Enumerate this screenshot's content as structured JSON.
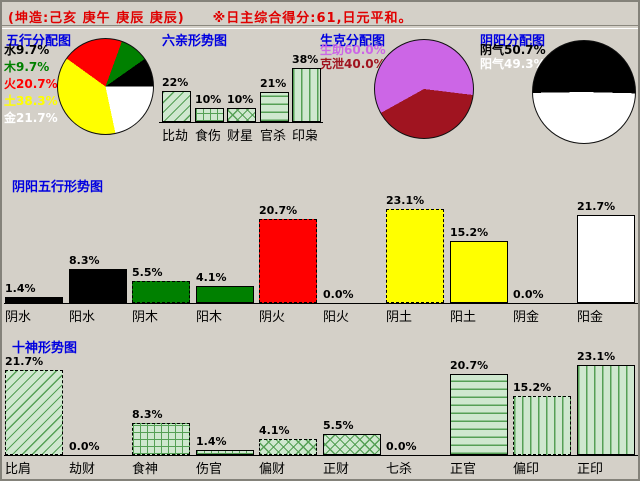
{
  "header": {
    "text": "(坤造:己亥  庚午  庚辰  庚辰)　　※日主综合得分:61,日元平和。"
  },
  "five_elements": {
    "title": "五行分配图",
    "legend": [
      {
        "text": "水9.7%",
        "color": "#000000"
      },
      {
        "text": "木9.7%",
        "color": "#008000"
      },
      {
        "text": "火20.7%",
        "color": "#ff0000"
      },
      {
        "text": "土38.3%",
        "color": "#ffff00"
      },
      {
        "text": "金21.7%",
        "color": "#ffffff"
      }
    ],
    "pie": {
      "start_deg": 20,
      "slices": [
        {
          "label": "木",
          "pct": 9.7,
          "color": "#008000"
        },
        {
          "label": "水",
          "pct": 9.7,
          "color": "#000000"
        },
        {
          "label": "金",
          "pct": 21.7,
          "color": "#ffffff"
        },
        {
          "label": "土",
          "pct": 38.3,
          "color": "#ffff00"
        },
        {
          "label": "火",
          "pct": 20.7,
          "color": "#ff0000"
        }
      ]
    }
  },
  "six_relations": {
    "title": "六亲形势图",
    "bars": [
      {
        "label": "比劫",
        "value": 22,
        "text": "22%",
        "pattern": "diag",
        "dashed": false
      },
      {
        "label": "食伤",
        "value": 10,
        "text": "10%",
        "pattern": "grid",
        "dashed": false
      },
      {
        "label": "财星",
        "value": 10,
        "text": "10%",
        "pattern": "diamond",
        "dashed": false
      },
      {
        "label": "官杀",
        "value": 21,
        "text": "21%",
        "pattern": "horiz",
        "dashed": false
      },
      {
        "label": "印枭",
        "value": 38,
        "text": "38%",
        "pattern": "vert",
        "dashed": false
      }
    ]
  },
  "sheng_ke": {
    "title": "生克分配图",
    "legend": [
      {
        "text": "生助60.0%",
        "color": "#cc66e6"
      },
      {
        "text": "克泄40.0%",
        "color": "#a01420"
      }
    ],
    "pie": {
      "start_deg": 97,
      "slices": [
        {
          "label": "克泄",
          "pct": 40.0,
          "color": "#a01420"
        },
        {
          "label": "生助",
          "pct": 60.0,
          "color": "#cc66e6"
        }
      ]
    }
  },
  "yin_yang": {
    "title": "阴阳分配图",
    "legend": [
      {
        "text": "阴气50.7%",
        "color": "#000000"
      },
      {
        "text": "阳气49.3%",
        "color": "#ffffff"
      }
    ],
    "pie": {
      "start_deg": 269,
      "slices": [
        {
          "label": "阴气",
          "pct": 50.7,
          "color": "#000000"
        },
        {
          "label": "阳气",
          "pct": 49.3,
          "color": "#ffffff"
        }
      ]
    }
  },
  "yinyang_five_elements": {
    "title": "阴阳五行形势图",
    "bars": [
      {
        "label": "阴水",
        "value": 1.4,
        "text": "1.4%",
        "color": "#000000",
        "dashed": true
      },
      {
        "label": "阳水",
        "value": 8.3,
        "text": "8.3%",
        "color": "#000000",
        "dashed": false
      },
      {
        "label": "阴木",
        "value": 5.5,
        "text": "5.5%",
        "color": "#008000",
        "dashed": true
      },
      {
        "label": "阳木",
        "value": 4.1,
        "text": "4.1%",
        "color": "#008000",
        "dashed": false
      },
      {
        "label": "阴火",
        "value": 20.7,
        "text": "20.7%",
        "color": "#ff0000",
        "dashed": true
      },
      {
        "label": "阳火",
        "value": 0.0,
        "text": "0.0%",
        "color": "#ff0000",
        "dashed": false
      },
      {
        "label": "阴土",
        "value": 23.1,
        "text": "23.1%",
        "color": "#ffff00",
        "dashed": true
      },
      {
        "label": "阳土",
        "value": 15.2,
        "text": "15.2%",
        "color": "#ffff00",
        "dashed": false
      },
      {
        "label": "阴金",
        "value": 0.0,
        "text": "0.0%",
        "color": "#ffffff",
        "dashed": true
      },
      {
        "label": "阳金",
        "value": 21.7,
        "text": "21.7%",
        "color": "#ffffff",
        "dashed": false
      }
    ]
  },
  "ten_gods": {
    "title": "十神形势图",
    "bars": [
      {
        "label": "比肩",
        "value": 21.7,
        "text": "21.7%",
        "pattern": "diag",
        "dashed": true
      },
      {
        "label": "劫财",
        "value": 0.0,
        "text": "0.0%",
        "pattern": "diag",
        "dashed": false
      },
      {
        "label": "食神",
        "value": 8.3,
        "text": "8.3%",
        "pattern": "grid",
        "dashed": true
      },
      {
        "label": "伤官",
        "value": 1.4,
        "text": "1.4%",
        "pattern": "grid",
        "dashed": false
      },
      {
        "label": "偏财",
        "value": 4.1,
        "text": "4.1%",
        "pattern": "diamond",
        "dashed": true
      },
      {
        "label": "正财",
        "value": 5.5,
        "text": "5.5%",
        "pattern": "diamond",
        "dashed": false
      },
      {
        "label": "七杀",
        "value": 0.0,
        "text": "0.0%",
        "pattern": "horiz",
        "dashed": true
      },
      {
        "label": "正官",
        "value": 20.7,
        "text": "20.7%",
        "pattern": "horiz",
        "dashed": false
      },
      {
        "label": "偏印",
        "value": 15.2,
        "text": "15.2%",
        "pattern": "vert",
        "dashed": true
      },
      {
        "label": "正印",
        "value": 23.1,
        "text": "23.1%",
        "pattern": "vert",
        "dashed": false
      }
    ]
  },
  "colors": {
    "background": "#d4d0c8",
    "header_text": "#e00000",
    "section_title": "#0000e0",
    "hatch_fill": "#cfe8cf",
    "hatch_line": "#55a055",
    "violet": "#cc66e6",
    "dark_red": "#a01420"
  },
  "chart_data": [
    {
      "type": "pie",
      "title": "五行分配图",
      "labels": [
        "水",
        "木",
        "火",
        "土",
        "金"
      ],
      "values": [
        9.7,
        9.7,
        20.7,
        38.3,
        21.7
      ],
      "colors": [
        "#000000",
        "#008000",
        "#ff0000",
        "#ffff00",
        "#ffffff"
      ],
      "legend_position": "left"
    },
    {
      "type": "bar",
      "title": "六亲形势图",
      "categories": [
        "比劫",
        "食伤",
        "财星",
        "官杀",
        "印枭"
      ],
      "values": [
        22,
        10,
        10,
        21,
        38
      ],
      "ylabel": "",
      "xlabel": "",
      "ylim": [
        0,
        40
      ],
      "grid": false
    },
    {
      "type": "pie",
      "title": "生克分配图",
      "labels": [
        "生助",
        "克泄"
      ],
      "values": [
        60.0,
        40.0
      ],
      "colors": [
        "#cc66e6",
        "#a01420"
      ],
      "legend_position": "left"
    },
    {
      "type": "pie",
      "title": "阴阳分配图",
      "labels": [
        "阴气",
        "阳气"
      ],
      "values": [
        50.7,
        49.3
      ],
      "colors": [
        "#000000",
        "#ffffff"
      ],
      "legend_position": "left"
    },
    {
      "type": "bar",
      "title": "阴阳五行形势图",
      "categories": [
        "阴水",
        "阳水",
        "阴木",
        "阳木",
        "阴火",
        "阳火",
        "阴土",
        "阳土",
        "阴金",
        "阳金"
      ],
      "values": [
        1.4,
        8.3,
        5.5,
        4.1,
        20.7,
        0.0,
        23.1,
        15.2,
        0.0,
        21.7
      ],
      "ylim": [
        0,
        25
      ],
      "grid": false
    },
    {
      "type": "bar",
      "title": "十神形势图",
      "categories": [
        "比肩",
        "劫财",
        "食神",
        "伤官",
        "偏财",
        "正财",
        "七杀",
        "正官",
        "偏印",
        "正印"
      ],
      "values": [
        21.7,
        0.0,
        8.3,
        1.4,
        4.1,
        5.5,
        0.0,
        20.7,
        15.2,
        23.1
      ],
      "ylim": [
        0,
        25
      ],
      "grid": false
    }
  ]
}
